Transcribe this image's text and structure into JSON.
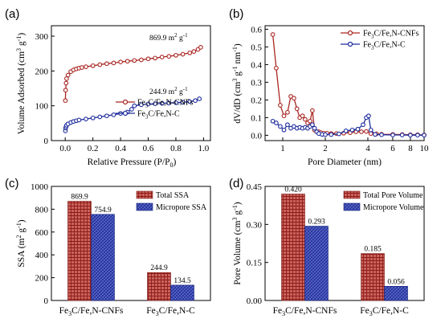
{
  "panels": [
    {
      "label": "(a)"
    },
    {
      "label": "(b)"
    },
    {
      "label": "(c)"
    },
    {
      "label": "(d)"
    }
  ],
  "colors": {
    "red": "#a92622",
    "blue": "#1d2c9c"
  },
  "chart_data": [
    {
      "type": "line",
      "panel": "(a)",
      "xlabel": "Relative Pressure (P/P0)",
      "ylabel": "Volume Adsorbed (cm3 g-1)",
      "xlim": [
        -0.1,
        1.05
      ],
      "ylim": [
        0,
        330
      ],
      "xticks": [
        "0.0",
        "0.2",
        "0.4",
        "0.6",
        "0.8",
        "1.0"
      ],
      "yticks": [
        "0",
        "100",
        "200",
        "300"
      ],
      "legend": "center-right",
      "annotations": [
        "869.9 m2 g-1",
        "244.9 m2 g-1"
      ],
      "series": [
        {
          "name": "Fe3C/Fe,N-CNFs",
          "color": "#a92622",
          "x": [
            0.001,
            0.003,
            0.006,
            0.01,
            0.02,
            0.04,
            0.06,
            0.08,
            0.1,
            0.12,
            0.15,
            0.2,
            0.25,
            0.3,
            0.35,
            0.4,
            0.45,
            0.5,
            0.55,
            0.6,
            0.65,
            0.7,
            0.75,
            0.8,
            0.85,
            0.9,
            0.93,
            0.96,
            0.98
          ],
          "y": [
            115,
            145,
            165,
            178,
            188,
            198,
            203,
            206,
            208,
            210,
            212,
            215,
            218,
            221,
            223,
            226,
            228,
            230,
            232,
            235,
            237,
            240,
            242,
            245,
            248,
            252,
            256,
            262,
            268
          ]
        },
        {
          "name": "Fe3C/Fe,N-C",
          "color": "#1d2c9c",
          "x": [
            0.001,
            0.003,
            0.006,
            0.01,
            0.02,
            0.04,
            0.06,
            0.08,
            0.1,
            0.15,
            0.2,
            0.25,
            0.3,
            0.35,
            0.4,
            0.45,
            0.48,
            0.5,
            0.55,
            0.6,
            0.65,
            0.7,
            0.75,
            0.8,
            0.85,
            0.9,
            0.94,
            0.97
          ],
          "y": [
            28,
            36,
            40,
            44,
            48,
            52,
            55,
            57,
            59,
            62,
            65,
            68,
            71,
            74,
            78,
            82,
            90,
            100,
            103,
            105,
            106,
            107,
            108,
            109,
            110,
            112,
            115,
            120
          ]
        }
      ]
    },
    {
      "type": "line",
      "panel": "(b)",
      "xlabel": "Pore Diameter (nm)",
      "ylabel": "dV/dD (cm3 g-1 nm-1)",
      "xscale": "log",
      "xlim": [
        0.75,
        10
      ],
      "ylim": [
        -0.03,
        0.62
      ],
      "xticks": [
        "1",
        "2",
        "4",
        "6",
        "8",
        "10"
      ],
      "yticks": [
        "0.0",
        "0.1",
        "0.2",
        "0.3",
        "0.4",
        "0.5",
        "0.6"
      ],
      "legend": "top-left",
      "series": [
        {
          "name": "Fe3C/Fe,N-CNFs",
          "color": "#a92622",
          "x": [
            0.85,
            0.9,
            0.96,
            1.02,
            1.08,
            1.14,
            1.2,
            1.26,
            1.32,
            1.38,
            1.44,
            1.5,
            1.56,
            1.62,
            1.68,
            1.74,
            1.8,
            1.86,
            1.95,
            2.05,
            2.2,
            2.4,
            2.7,
            3.0,
            3.3,
            3.6,
            3.9,
            4.2,
            4.6,
            5.0,
            6.0,
            7.0,
            8.0,
            9.0,
            10.0
          ],
          "y": [
            0.57,
            0.38,
            0.17,
            0.11,
            0.13,
            0.22,
            0.21,
            0.15,
            0.1,
            0.11,
            0.09,
            0.07,
            0.08,
            0.14,
            0.03,
            0.02,
            0.02,
            0.015,
            0.012,
            0.012,
            0.01,
            0.01,
            0.012,
            0.015,
            0.02,
            0.02,
            0.022,
            0.01,
            0.008,
            0.006,
            0.005,
            0.004,
            0.003,
            0.003,
            0.002
          ]
        },
        {
          "name": "Fe3C/Fe,N-C",
          "color": "#1d2c9c",
          "x": [
            0.85,
            0.9,
            0.96,
            1.02,
            1.08,
            1.14,
            1.2,
            1.26,
            1.32,
            1.38,
            1.44,
            1.5,
            1.56,
            1.62,
            1.68,
            1.74,
            1.8,
            1.9,
            2.0,
            2.2,
            2.5,
            2.8,
            3.1,
            3.4,
            3.7,
            3.9,
            4.05,
            4.2,
            4.5,
            5.0,
            6.0,
            7.0,
            8.0,
            9.0,
            10.0
          ],
          "y": [
            0.08,
            0.07,
            0.05,
            0.03,
            0.06,
            0.04,
            0.05,
            0.04,
            0.045,
            0.04,
            0.045,
            0.04,
            0.05,
            0.06,
            0.04,
            0.02,
            0.01,
            0.005,
            0.004,
            0.004,
            0.008,
            0.025,
            0.03,
            0.035,
            0.06,
            0.1,
            0.11,
            0.03,
            0.005,
            0.003,
            0.002,
            0.002,
            0.001,
            0.001,
            0.001
          ]
        }
      ]
    },
    {
      "type": "bar",
      "panel": "(c)",
      "ylabel": "SSA (m2 g-1)",
      "ylim": [
        0,
        1000
      ],
      "yticks": [
        "0",
        "200",
        "400",
        "600",
        "800",
        "1000"
      ],
      "categories": [
        "Fe3C/Fe,N-CNFs",
        "Fe3C/Fe,N-C"
      ],
      "legend": "top-right",
      "series": [
        {
          "name": "Total SSA",
          "color": "#a92622",
          "values": [
            869.9,
            244.9
          ],
          "labels": [
            "869.9",
            "244.9"
          ]
        },
        {
          "name": "Micropore SSA",
          "color": "#1d2c9c",
          "values": [
            754.9,
            134.5
          ],
          "labels": [
            "754.9",
            "134.5"
          ]
        }
      ]
    },
    {
      "type": "bar",
      "panel": "(d)",
      "ylabel": "Pore Volume (cm3 g-1)",
      "ylim": [
        0,
        0.45
      ],
      "yticks": [
        "0.00",
        "0.15",
        "0.30",
        "0.45"
      ],
      "categories": [
        "Fe3C/Fe,N-CNFs",
        "Fe3C/Fe,N-C"
      ],
      "legend": "top-right",
      "series": [
        {
          "name": "Total Pore Volume",
          "color": "#a92622",
          "values": [
            0.42,
            0.185
          ],
          "labels": [
            "0.420",
            "0.185"
          ]
        },
        {
          "name": "Micropore Volume",
          "color": "#1d2c9c",
          "values": [
            0.293,
            0.056
          ],
          "labels": [
            "0.293",
            "0.056"
          ]
        }
      ]
    }
  ]
}
